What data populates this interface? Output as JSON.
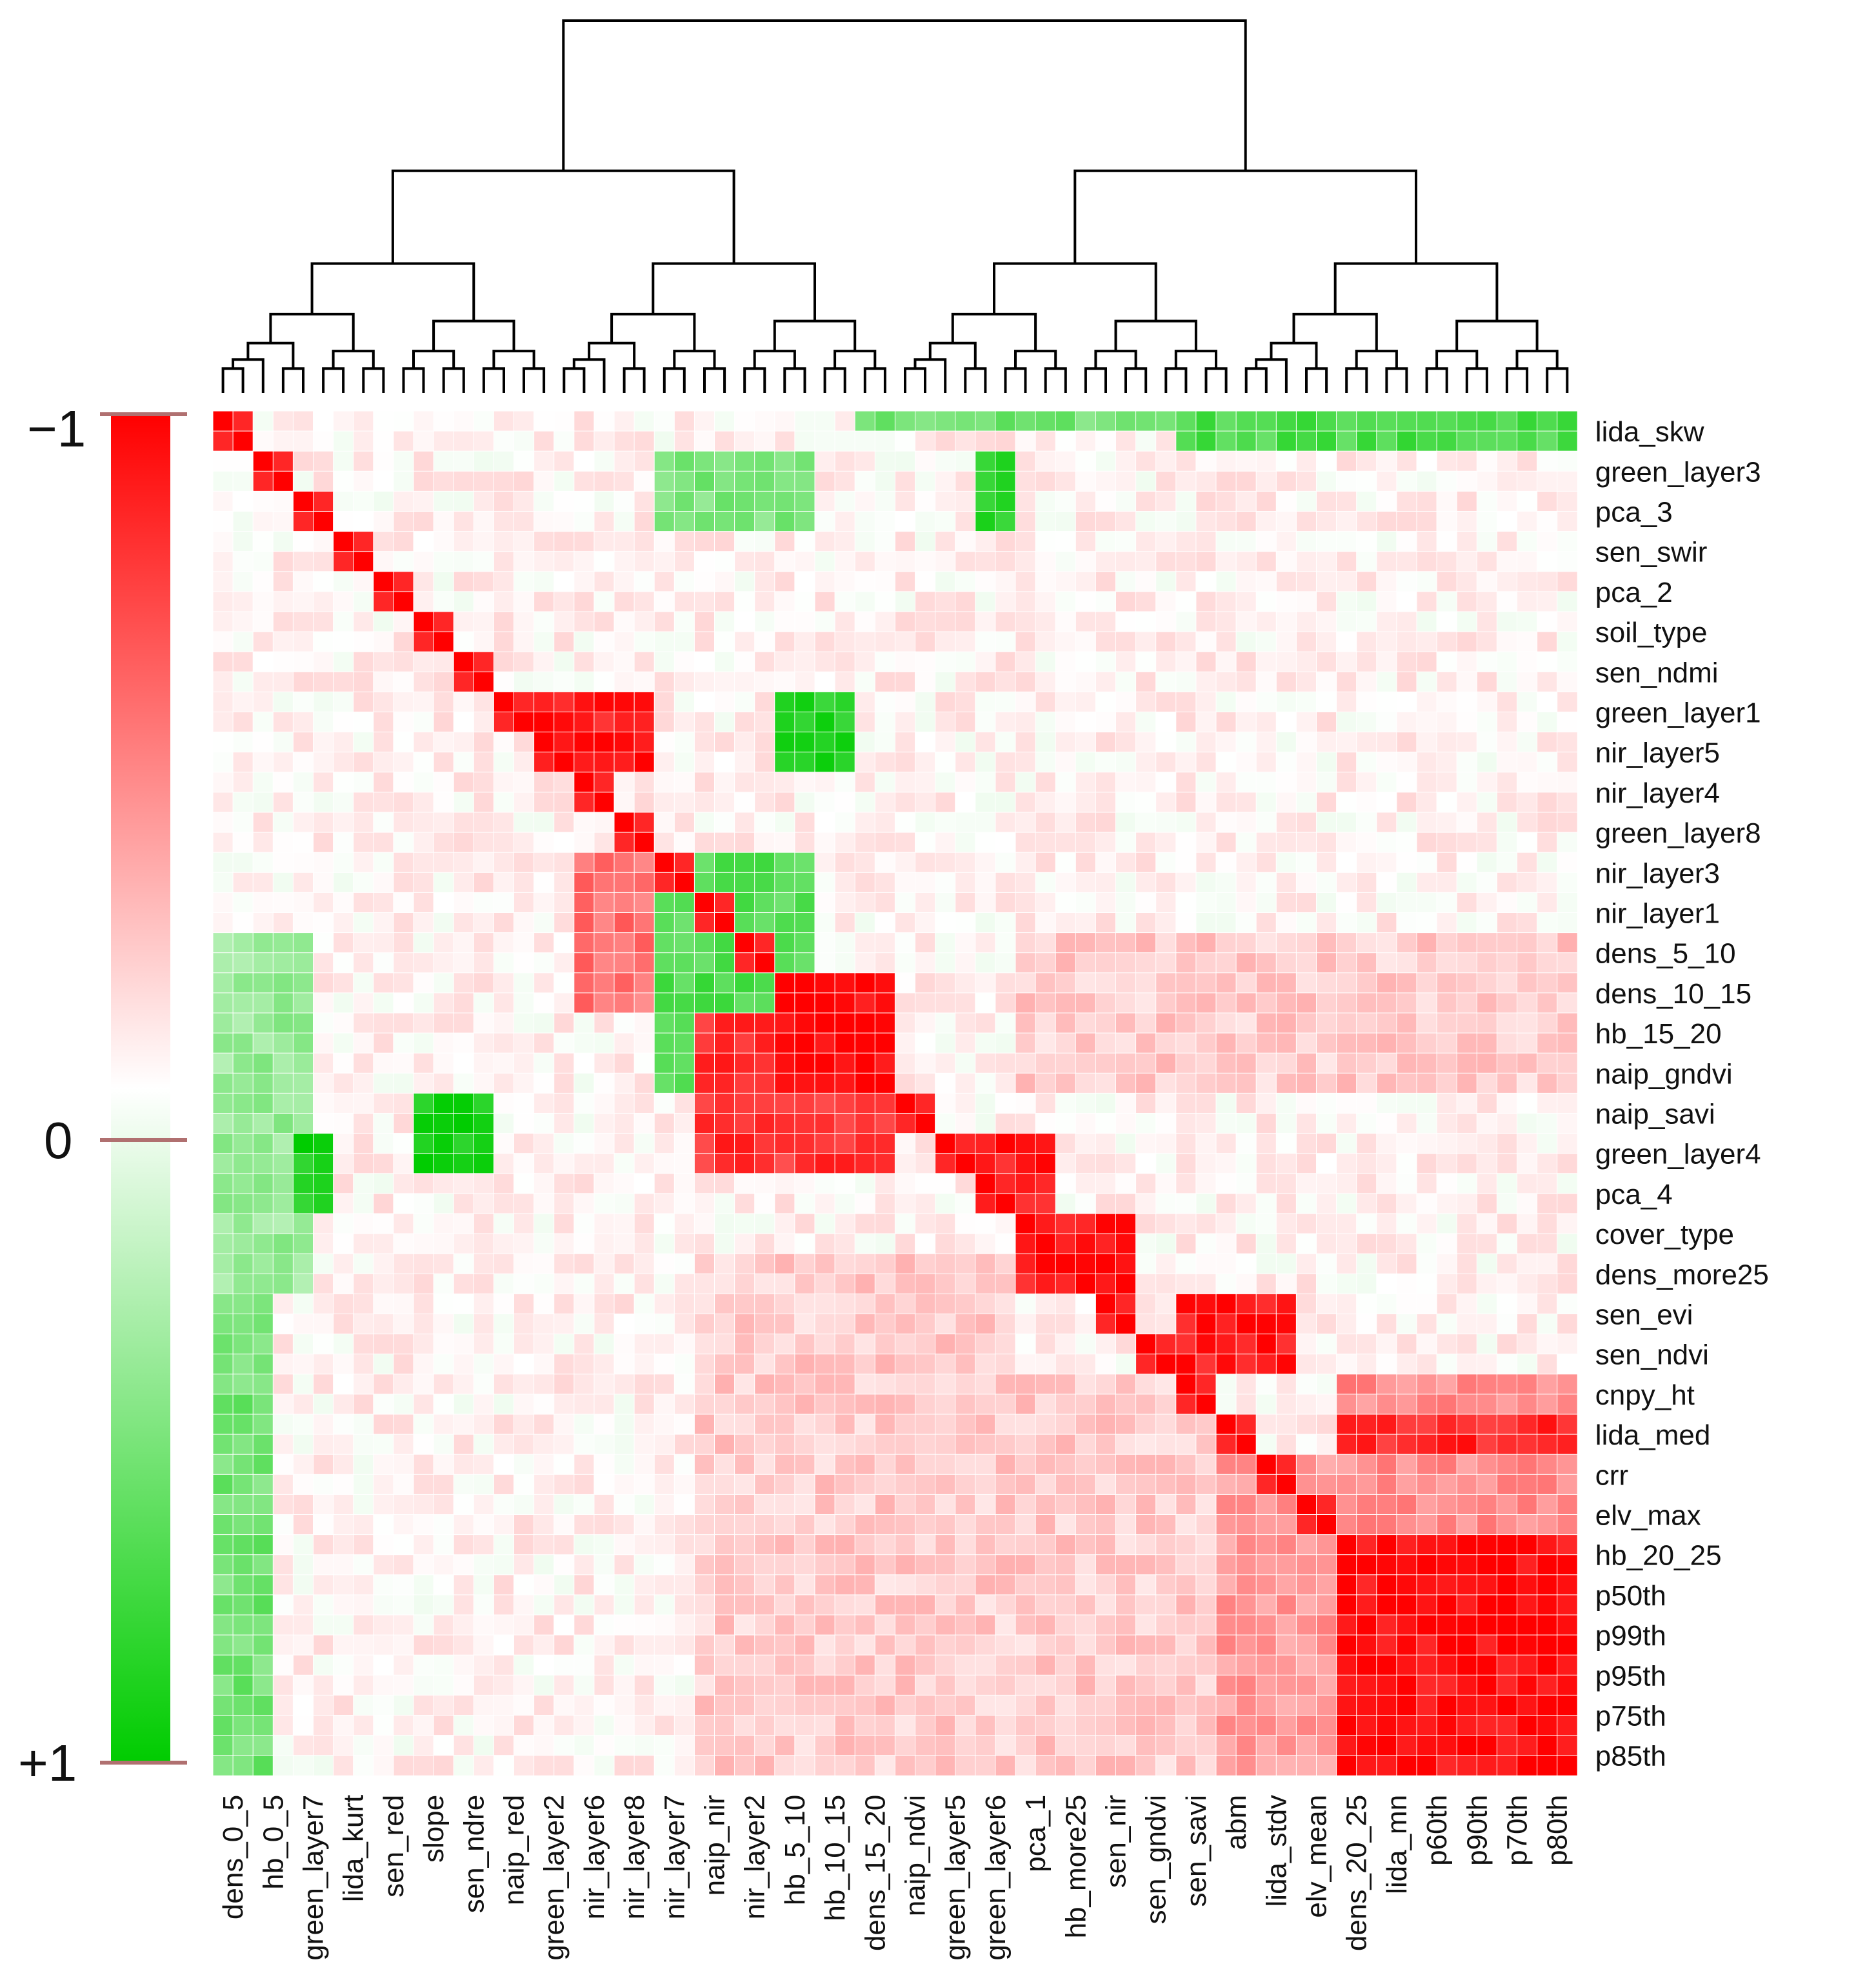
{
  "chart_data": {
    "type": "heatmap",
    "title": "",
    "subtitle": "",
    "description_note": "Clustered correlation heatmap with dendrogram; cell values are approximate estimates (colour encodes -1 red to +1 green).",
    "row_labels": [
      "lida_skw",
      "green_layer3",
      "pca_3",
      "sen_swir",
      "pca_2",
      "soil_type",
      "sen_ndmi",
      "green_layer1",
      "nir_layer5",
      "nir_layer4",
      "green_layer8",
      "nir_layer3",
      "nir_layer1",
      "dens_5_10",
      "dens_10_15",
      "hb_15_20",
      "naip_gndvi",
      "naip_savi",
      "green_layer4",
      "pca_4",
      "cover_type",
      "dens_more25",
      "sen_evi",
      "sen_ndvi",
      "cnpy_ht",
      "lida_med",
      "crr",
      "elv_max",
      "hb_20_25",
      "p50th",
      "p99th",
      "p95th",
      "p75th",
      "p85th"
    ],
    "col_labels": [
      "dens_0_5",
      "hb_0_5",
      "green_layer7",
      "lida_kurt",
      "sen_red",
      "slope",
      "sen_ndre",
      "naip_red",
      "green_layer2",
      "nir_layer6",
      "nir_layer8",
      "nir_layer7",
      "naip_nir",
      "nir_layer2",
      "hb_5_10",
      "hb_10_15",
      "dens_15_20",
      "naip_ndvi",
      "green_layer5",
      "green_layer6",
      "pca_1",
      "hb_more25",
      "sen_nir",
      "sen_gndvi",
      "sen_savi",
      "abm",
      "lida_stdv",
      "elv_mean",
      "dens_20_25",
      "lida_mn",
      "p60th",
      "p90th",
      "p70th",
      "p80th"
    ],
    "n_cells_per_axis": 68,
    "label_every": 2,
    "color_scale": {
      "min_value": -1,
      "mid_value": 0,
      "max_value": 1,
      "min_color": "#ff0000",
      "mid_color": "#ffffff",
      "max_color": "#00cc00",
      "ticks": [
        "−1",
        "0",
        "+1"
      ]
    },
    "grid_color": "#ffffff",
    "dendrogram_color": "#000000",
    "blocks": [
      {
        "r0": 0,
        "r1": 67,
        "c0": 0,
        "c1": 67,
        "v": -0.05
      },
      {
        "r0": 56,
        "r1": 67,
        "c0": 56,
        "c1": 67,
        "v": -0.95
      },
      {
        "r0": 52,
        "r1": 67,
        "c0": 50,
        "c1": 55,
        "v": -0.4
      },
      {
        "r0": 48,
        "r1": 55,
        "c0": 56,
        "c1": 67,
        "v": -0.45
      },
      {
        "r0": 50,
        "r1": 51,
        "c0": 56,
        "c1": 67,
        "v": -0.85
      },
      {
        "r0": 0,
        "r1": 1,
        "c0": 48,
        "c1": 67,
        "v": 0.7
      },
      {
        "r0": 0,
        "r1": 0,
        "c0": 32,
        "c1": 47,
        "v": 0.55
      },
      {
        "r0": 26,
        "r1": 43,
        "c0": 0,
        "c1": 4,
        "v": 0.4
      },
      {
        "r0": 44,
        "r1": 67,
        "c0": 0,
        "c1": 2,
        "v": 0.55
      },
      {
        "r0": 2,
        "r1": 5,
        "c0": 22,
        "c1": 29,
        "v": 0.5
      },
      {
        "r0": 36,
        "r1": 39,
        "c0": 4,
        "c1": 5,
        "v": 0.9
      },
      {
        "r0": 24,
        "r1": 29,
        "c0": 18,
        "c1": 23,
        "v": 0.8
      },
      {
        "r0": 34,
        "r1": 37,
        "c0": 10,
        "c1": 13,
        "v": 0.9
      },
      {
        "r0": 2,
        "r1": 5,
        "c0": 38,
        "c1": 39,
        "v": 0.85
      },
      {
        "r0": 14,
        "r1": 17,
        "c0": 28,
        "c1": 31,
        "v": 0.85
      },
      {
        "r0": 22,
        "r1": 29,
        "c0": 18,
        "c1": 27,
        "v": -0.55
      },
      {
        "r0": 22,
        "r1": 27,
        "c0": 22,
        "c1": 29,
        "v": 0.65
      },
      {
        "r0": 28,
        "r1": 33,
        "c0": 22,
        "c1": 27,
        "v": 0.7
      },
      {
        "r0": 14,
        "r1": 17,
        "c0": 16,
        "c1": 21,
        "v": -0.9
      },
      {
        "r0": 30,
        "r1": 37,
        "c0": 24,
        "c1": 33,
        "v": -0.8
      },
      {
        "r0": 42,
        "r1": 47,
        "c0": 24,
        "c1": 39,
        "v": -0.2
      },
      {
        "r0": 28,
        "r1": 33,
        "c0": 28,
        "c1": 33,
        "v": -0.95
      },
      {
        "r0": 36,
        "r1": 39,
        "c0": 38,
        "c1": 41,
        "v": -0.9
      },
      {
        "r0": 40,
        "r1": 43,
        "c0": 40,
        "c1": 45,
        "v": -0.9
      },
      {
        "r0": 44,
        "r1": 47,
        "c0": 48,
        "c1": 53,
        "v": -0.9
      },
      {
        "r0": 26,
        "r1": 33,
        "c0": 40,
        "c1": 67,
        "v": -0.2
      },
      {
        "r0": 48,
        "r1": 67,
        "c0": 24,
        "c1": 49,
        "v": -0.2
      },
      {
        "r0": 0,
        "r1": 67,
        "c0": 0,
        "c1": 67,
        "diag": true
      }
    ]
  }
}
